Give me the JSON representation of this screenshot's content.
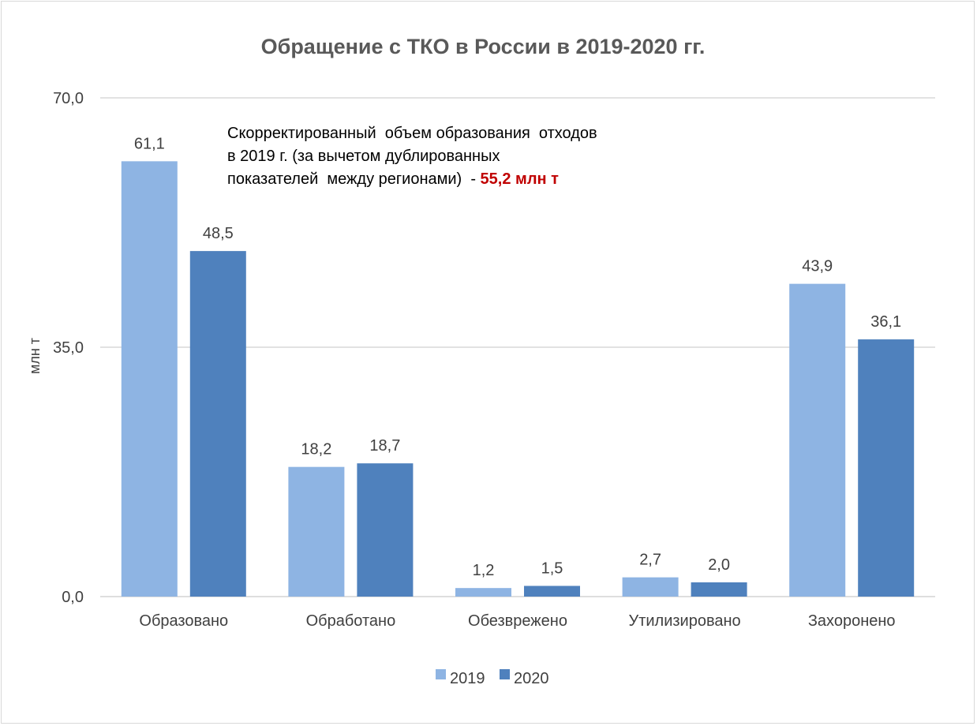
{
  "chart_data": {
    "type": "bar",
    "title": "Обращение с ТКО в России в 2019-2020 гг.",
    "ylabel": "млн т",
    "xlabel": "",
    "ylim": [
      0,
      70
    ],
    "yticks": [
      "0,0",
      "35,0",
      "70,0"
    ],
    "ytick_values": [
      0,
      35,
      70
    ],
    "grid": true,
    "legend_position": "bottom",
    "categories": [
      "Образовано",
      "Обработано",
      "Обезврежено",
      "Утилизировано",
      "Захоронено"
    ],
    "series": [
      {
        "name": "2019",
        "color": "#8eb4e3",
        "values": [
          61.1,
          18.2,
          1.2,
          2.7,
          43.9
        ],
        "labels": [
          "61,1",
          "18,2",
          "1,2",
          "2,7",
          "43,9"
        ]
      },
      {
        "name": "2020",
        "color": "#4f81bd",
        "values": [
          48.5,
          18.7,
          1.5,
          2.0,
          36.1
        ],
        "labels": [
          "48,5",
          "18,7",
          "1,5",
          "2,0",
          "36,1"
        ]
      }
    ],
    "annotation": {
      "lines": [
        "Скорректированный  объем образования  отходов",
        "в 2019 г. (за вычетом дублированных",
        "показателей  между регионами)  - "
      ],
      "highlight": "55,2 млн т",
      "highlight_color": "#c00000"
    },
    "gridline_color": "#d9d9d9",
    "axis_color": "#d9d9d9"
  }
}
